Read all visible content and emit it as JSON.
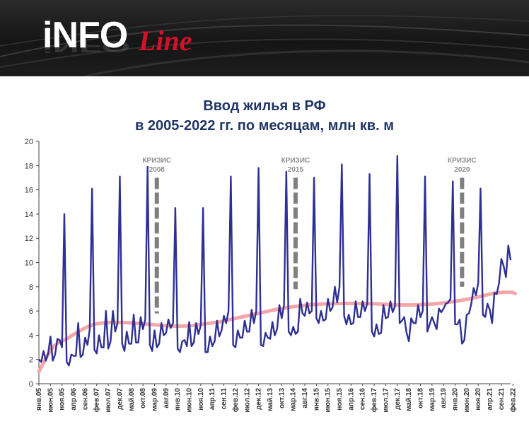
{
  "header": {
    "logo_main": "iNFO",
    "logo_script": "Line"
  },
  "title_line1": "Ввод жилья в РФ",
  "title_line2": "в 2005-2022 гг. по месяцам, млн кв. м",
  "colors": {
    "monthly_line": "#2e3092",
    "trend_line": "#f4a6a8",
    "crisis_marker": "#7f7f7f",
    "title": "#1f3566"
  },
  "chart_data": {
    "type": "line",
    "title": "Ввод жилья в РФ в 2005-2022 гг. по месяцам, млн кв. м",
    "xlabel": "",
    "ylabel": "",
    "ylim": [
      0,
      20
    ],
    "yticks": [
      0,
      2,
      4,
      6,
      8,
      10,
      12,
      14,
      16,
      18,
      20
    ],
    "grid": false,
    "legend": "none",
    "x_start": "2005-01",
    "x_end": "2022-02",
    "x_tick_labels": [
      "янв.05",
      "июн.05",
      "ноя.05",
      "апр.06",
      "сен.06",
      "фев.07",
      "июл.07",
      "дек.07",
      "май.08",
      "окт.08",
      "мар.09",
      "авг.09",
      "янв.10",
      "июн.10",
      "ноя.10",
      "апр.11",
      "сен.11",
      "фев.12",
      "июл.12",
      "дек.12",
      "май.13",
      "окт.13",
      "мар.14",
      "авг.14",
      "янв.15",
      "июн.15",
      "ноя.15",
      "апр.16",
      "сен.16",
      "фев.17",
      "июл.17",
      "дек.17",
      "май.18",
      "окт.18",
      "мар.19",
      "авг.19",
      "янв.20",
      "июн.20",
      "ноя.20",
      "апр.21",
      "сен.21",
      "фев.22"
    ],
    "series": [
      {
        "role": "monthly",
        "values": [
          2.0,
          1.8,
          2.7,
          1.9,
          2.5,
          3.9,
          1.9,
          2.4,
          3.7,
          3.6,
          3.0,
          14.0,
          1.8,
          1.5,
          2.4,
          2.3,
          2.3,
          5.0,
          2.2,
          2.4,
          3.8,
          3.2,
          4.5,
          16.1,
          2.8,
          2.5,
          4.0,
          3.0,
          3.0,
          6.0,
          2.9,
          3.5,
          6.0,
          4.3,
          5.0,
          17.1,
          3.3,
          2.7,
          4.3,
          3.3,
          3.3,
          5.7,
          3.4,
          3.4,
          5.5,
          4.5,
          5.3,
          17.9,
          3.2,
          2.7,
          4.4,
          3.0,
          3.3,
          5.0,
          4.0,
          4.2,
          5.3,
          4.6,
          5.0,
          14.5,
          2.9,
          2.6,
          3.5,
          3.6,
          3.1,
          5.1,
          3.1,
          3.4,
          5.0,
          4.1,
          4.8,
          14.5,
          2.6,
          2.6,
          3.9,
          3.1,
          3.5,
          5.2,
          3.9,
          4.4,
          5.6,
          5.0,
          6.0,
          17.1,
          3.2,
          3.0,
          4.4,
          3.8,
          3.8,
          5.2,
          4.3,
          4.3,
          6.1,
          5.0,
          6.0,
          17.8,
          3.2,
          3.1,
          4.2,
          3.8,
          3.7,
          5.1,
          4.0,
          4.5,
          6.5,
          5.4,
          6.5,
          17.5,
          4.3,
          4.0,
          4.7,
          4.1,
          4.3,
          7.0,
          5.8,
          5.6,
          6.7,
          5.8,
          6.0,
          17.0,
          5.4,
          5.0,
          6.0,
          5.2,
          5.3,
          7.0,
          6.0,
          6.3,
          8.0,
          6.7,
          8.0,
          18.1,
          5.6,
          4.9,
          5.7,
          4.9,
          5.0,
          6.8,
          5.5,
          5.5,
          6.8,
          6.0,
          6.6,
          17.3,
          4.3,
          3.9,
          4.9,
          4.1,
          4.2,
          6.5,
          5.4,
          5.5,
          6.8,
          5.9,
          6.4,
          18.8,
          5.0,
          5.2,
          5.5,
          4.2,
          3.5,
          5.4,
          5.0,
          5.0,
          6.5,
          5.5,
          6.0,
          17.1,
          4.3,
          4.9,
          5.5,
          5.0,
          4.5,
          6.2,
          5.9,
          6.2,
          6.6,
          6.7,
          7.0,
          16.7,
          4.9,
          4.9,
          5.3,
          3.3,
          3.6,
          5.7,
          5.8,
          6.6,
          7.9,
          7.3,
          8.3,
          16.1,
          5.7,
          5.5,
          6.6,
          6.1,
          5.0,
          7.5,
          7.4,
          8.3,
          10.3,
          9.7,
          8.8,
          11.4,
          10.2
        ]
      },
      {
        "role": "trend",
        "points": [
          [
            0,
            1.0
          ],
          [
            6,
            3.0
          ],
          [
            12,
            3.7
          ],
          [
            18,
            4.4
          ],
          [
            24,
            4.9
          ],
          [
            30,
            5.05
          ],
          [
            36,
            5.05
          ],
          [
            42,
            5.0
          ],
          [
            48,
            4.9
          ],
          [
            54,
            4.8
          ],
          [
            60,
            4.75
          ],
          [
            66,
            4.8
          ],
          [
            72,
            4.95
          ],
          [
            78,
            5.1
          ],
          [
            84,
            5.35
          ],
          [
            90,
            5.6
          ],
          [
            96,
            5.85
          ],
          [
            102,
            6.1
          ],
          [
            108,
            6.3
          ],
          [
            114,
            6.45
          ],
          [
            120,
            6.55
          ],
          [
            126,
            6.6
          ],
          [
            132,
            6.62
          ],
          [
            138,
            6.62
          ],
          [
            144,
            6.6
          ],
          [
            150,
            6.55
          ],
          [
            156,
            6.5
          ],
          [
            162,
            6.5
          ],
          [
            168,
            6.55
          ],
          [
            174,
            6.65
          ],
          [
            180,
            6.8
          ],
          [
            186,
            7.0
          ],
          [
            192,
            7.25
          ],
          [
            198,
            7.5
          ],
          [
            204,
            7.55
          ],
          [
            206,
            7.45
          ]
        ]
      }
    ],
    "annotations": [
      {
        "label": "КРИЗИС",
        "year": "2008",
        "month_index": 51,
        "y_from": 5.8,
        "y_to": 17.0
      },
      {
        "label": "КРИЗИС",
        "year": "2015",
        "month_index": 111,
        "y_from": 7.8,
        "y_to": 17.0
      },
      {
        "label": "КРИЗИС",
        "year": "2020",
        "month_index": 183,
        "y_from": 8.0,
        "y_to": 17.0
      }
    ]
  }
}
